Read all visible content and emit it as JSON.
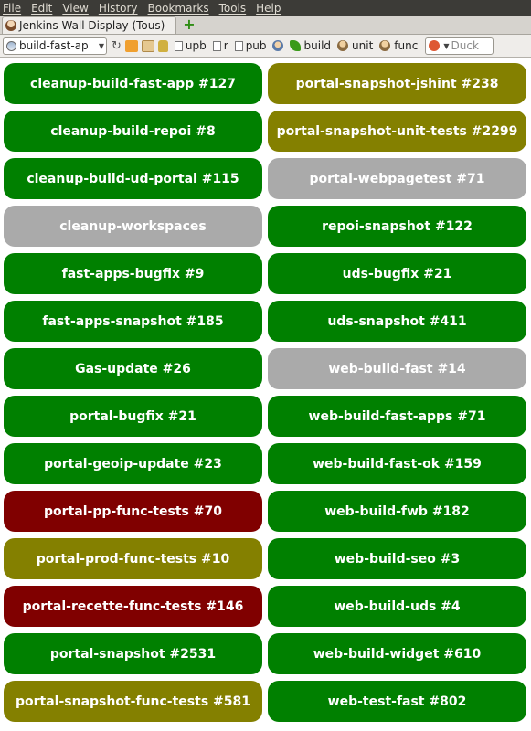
{
  "menu": [
    "File",
    "Edit",
    "View",
    "History",
    "Bookmarks",
    "Tools",
    "Help"
  ],
  "tab": {
    "title": "Jenkins Wall Display (Tous)"
  },
  "nav": {
    "url": "build-fast-ap",
    "bookmarks": [
      "upb",
      "r",
      "pub"
    ],
    "toolbar_links": [
      "build",
      "unit",
      "func"
    ],
    "search_placeholder": "Duck"
  },
  "colors": {
    "success": "#008000",
    "unstable": "#848000",
    "failed": "#800000",
    "disabled": "#aaaaaa"
  },
  "jobs": [
    {
      "label": "cleanup-build-fast-app #127",
      "status": "success"
    },
    {
      "label": "cleanup-build-repoi #8",
      "status": "success"
    },
    {
      "label": "cleanup-build-ud-portal #115",
      "status": "success"
    },
    {
      "label": "cleanup-workspaces",
      "status": "disabled"
    },
    {
      "label": "fast-apps-bugfix #9",
      "status": "success"
    },
    {
      "label": "fast-apps-snapshot #185",
      "status": "success"
    },
    {
      "label": "Gas-update #26",
      "status": "success"
    },
    {
      "label": "portal-bugfix #21",
      "status": "success"
    },
    {
      "label": "portal-geoip-update #23",
      "status": "success"
    },
    {
      "label": "portal-pp-func-tests #70",
      "status": "failed"
    },
    {
      "label": "portal-prod-func-tests #10",
      "status": "unstable"
    },
    {
      "label": "portal-recette-func-tests #146",
      "status": "failed"
    },
    {
      "label": "portal-snapshot #2531",
      "status": "success"
    },
    {
      "label": "portal-snapshot-func-tests #581",
      "status": "unstable"
    },
    {
      "label": "portal-snapshot-jshint #238",
      "status": "unstable"
    },
    {
      "label": "portal-snapshot-unit-tests #2299",
      "status": "unstable"
    },
    {
      "label": "portal-webpagetest #71",
      "status": "disabled"
    },
    {
      "label": "repoi-snapshot #122",
      "status": "success"
    },
    {
      "label": "uds-bugfix #21",
      "status": "success"
    },
    {
      "label": "uds-snapshot #411",
      "status": "success"
    },
    {
      "label": "web-build-fast #14",
      "status": "disabled"
    },
    {
      "label": "web-build-fast-apps #71",
      "status": "success"
    },
    {
      "label": "web-build-fast-ok #159",
      "status": "success"
    },
    {
      "label": "web-build-fwb #182",
      "status": "success"
    },
    {
      "label": "web-build-seo #3",
      "status": "success"
    },
    {
      "label": "web-build-uds #4",
      "status": "success"
    },
    {
      "label": "web-build-widget #610",
      "status": "success"
    },
    {
      "label": "web-test-fast #802",
      "status": "success"
    }
  ]
}
